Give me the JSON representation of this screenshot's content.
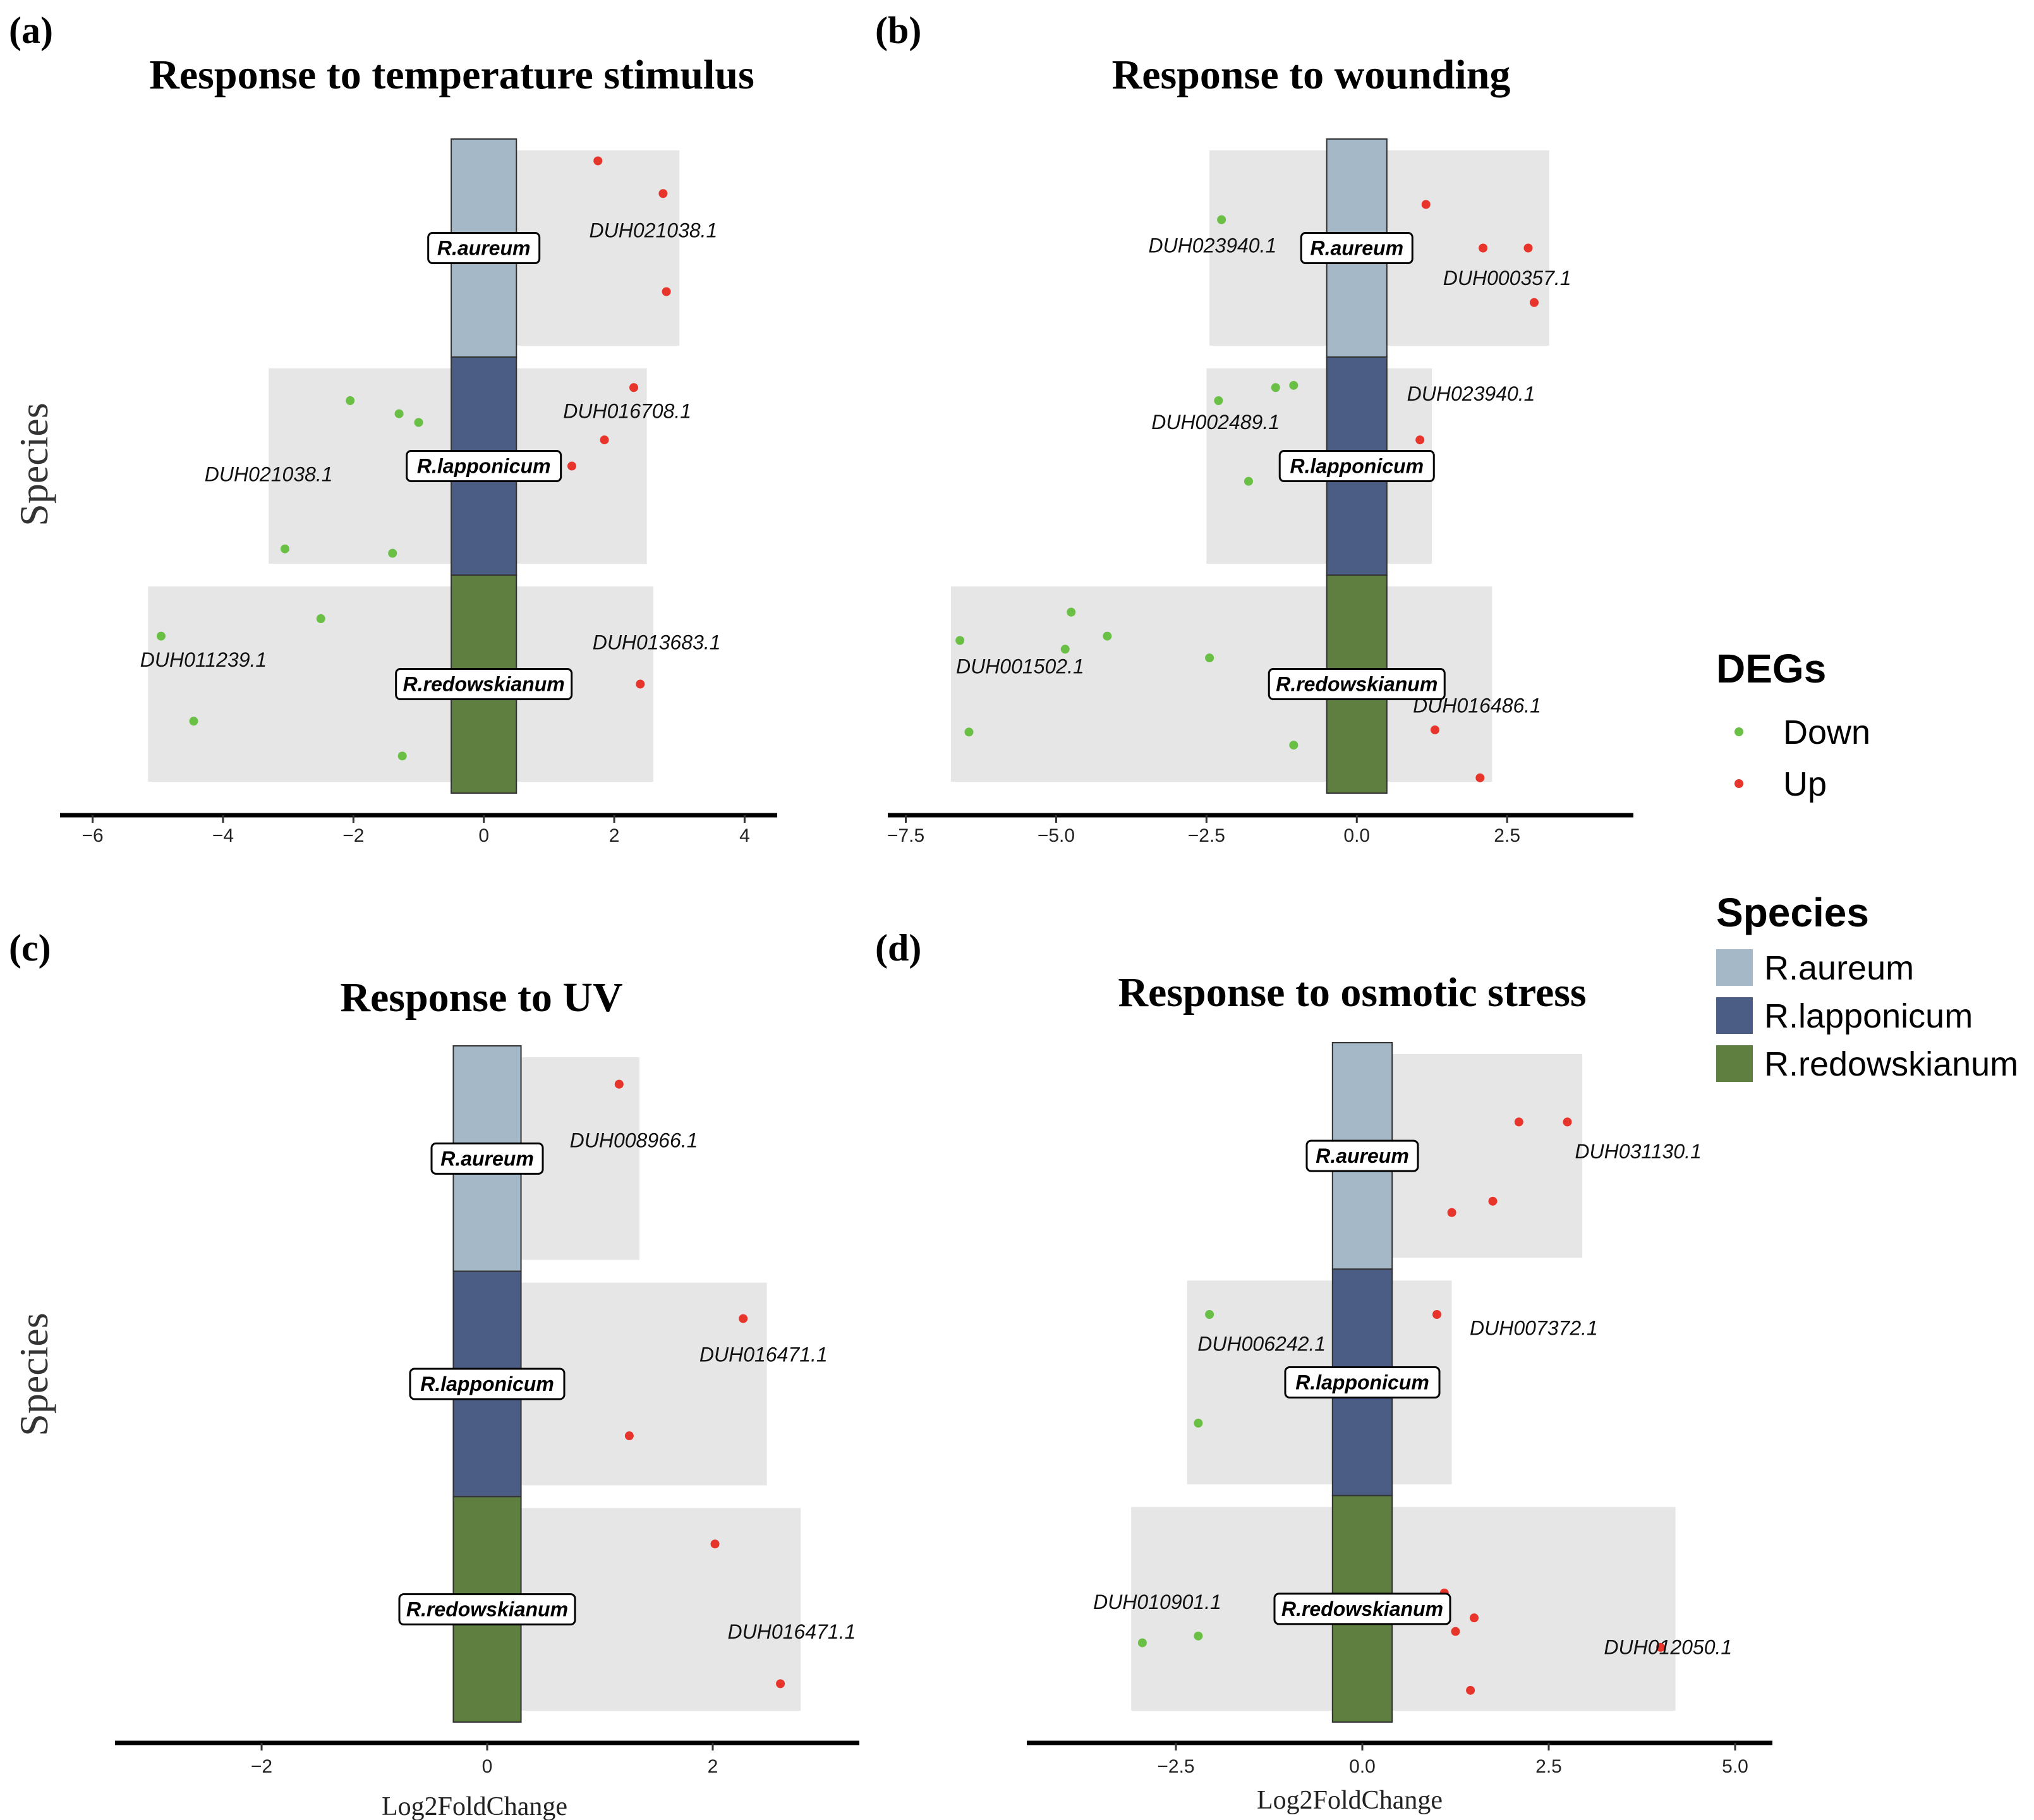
{
  "figure": {
    "y_axis_label": "Species",
    "x_axis_label": "Log2FoldChange",
    "legend": {
      "degs_title": "DEGs",
      "degs": [
        {
          "name": "Down",
          "color": "#6abf45"
        },
        {
          "name": "Up",
          "color": "#e8352b"
        }
      ],
      "species_title": "Species",
      "species": [
        {
          "name": "R.aureum",
          "color": "#a5b8c7"
        },
        {
          "name": "R.lapponicum",
          "color": "#4b5d85"
        },
        {
          "name": "R.redowskianum",
          "color": "#5e7f3f"
        }
      ]
    }
  },
  "chart_data": [
    {
      "type": "scatter",
      "panel": "(a)",
      "title": "Response to temperature stimulus",
      "xlabel": "",
      "ylabel": "Species",
      "xlim": [
        -6.5,
        4.5
      ],
      "xticks": [
        -6,
        -4,
        -2,
        0,
        2,
        4
      ],
      "tick_labels": [
        "−6",
        "−4",
        "−2",
        "0",
        "2",
        "4"
      ],
      "center_half_width": 0.5,
      "species": [
        {
          "name": "R.aureum",
          "range": [
            0.4,
            3.0
          ],
          "points": [
            {
              "x": 1.75,
              "y": 0.9,
              "deg": "Up"
            },
            {
              "x": 2.75,
              "y": 0.75,
              "deg": "Up"
            },
            {
              "x": 2.8,
              "y": 0.3,
              "deg": "Up"
            }
          ],
          "genes": [
            {
              "text": "DUH021038.1",
              "x": 2.6,
              "y": 0.55
            }
          ]
        },
        {
          "name": "R.lapponicum",
          "range": [
            -3.3,
            2.5
          ],
          "points": [
            {
              "x": -2.05,
              "y": 0.8,
              "deg": "Down"
            },
            {
              "x": -1.3,
              "y": 0.74,
              "deg": "Down"
            },
            {
              "x": -1.0,
              "y": 0.7,
              "deg": "Down"
            },
            {
              "x": -3.05,
              "y": 0.12,
              "deg": "Down"
            },
            {
              "x": -1.4,
              "y": 0.1,
              "deg": "Down"
            },
            {
              "x": 2.3,
              "y": 0.86,
              "deg": "Up"
            },
            {
              "x": 1.85,
              "y": 0.62,
              "deg": "Up"
            },
            {
              "x": 1.35,
              "y": 0.5,
              "deg": "Up"
            }
          ],
          "genes": [
            {
              "text": "DUH016708.1",
              "x": 2.2,
              "y": 0.72
            },
            {
              "text": "DUH021038.1",
              "x": -3.3,
              "y": 0.43
            }
          ]
        },
        {
          "name": "R.redowskianum",
          "range": [
            -5.15,
            2.6
          ],
          "points": [
            {
              "x": -2.5,
              "y": 0.8,
              "deg": "Down"
            },
            {
              "x": -4.95,
              "y": 0.72,
              "deg": "Down"
            },
            {
              "x": -4.45,
              "y": 0.33,
              "deg": "Down"
            },
            {
              "x": -1.25,
              "y": 0.17,
              "deg": "Down"
            },
            {
              "x": 2.4,
              "y": 0.5,
              "deg": "Up"
            }
          ],
          "genes": [
            {
              "text": "DUH011239.1",
              "x": -4.3,
              "y": 0.58
            },
            {
              "text": "DUH013683.1",
              "x": 2.65,
              "y": 0.66
            }
          ]
        }
      ]
    },
    {
      "type": "scatter",
      "panel": "(b)",
      "title": "Response to wounding",
      "xlabel": "",
      "ylabel": "",
      "xlim": [
        -7.8,
        4.6
      ],
      "xticks": [
        -7.5,
        -5.0,
        -2.5,
        0.0,
        2.5
      ],
      "tick_labels": [
        "−7.5",
        "−5.0",
        "−2.5",
        "0.0",
        "2.5"
      ],
      "center_half_width": 0.5,
      "species": [
        {
          "name": "R.aureum",
          "range": [
            -2.45,
            3.2
          ],
          "points": [
            {
              "x": -2.25,
              "y": 0.63,
              "deg": "Down"
            },
            {
              "x": 1.15,
              "y": 0.7,
              "deg": "Up"
            },
            {
              "x": 2.1,
              "y": 0.5,
              "deg": "Up"
            },
            {
              "x": 2.85,
              "y": 0.5,
              "deg": "Up"
            },
            {
              "x": 2.95,
              "y": 0.25,
              "deg": "Up"
            }
          ],
          "genes": [
            {
              "text": "DUH023940.1",
              "x": -2.4,
              "y": 0.48
            },
            {
              "text": "DUH000357.1",
              "x": 2.5,
              "y": 0.33
            }
          ]
        },
        {
          "name": "R.lapponicum",
          "range": [
            -2.5,
            1.25
          ],
          "points": [
            {
              "x": -2.3,
              "y": 0.8,
              "deg": "Down"
            },
            {
              "x": -1.35,
              "y": 0.86,
              "deg": "Down"
            },
            {
              "x": -1.05,
              "y": 0.87,
              "deg": "Down"
            },
            {
              "x": -1.8,
              "y": 0.43,
              "deg": "Down"
            },
            {
              "x": 1.05,
              "y": 0.62,
              "deg": "Up"
            }
          ],
          "genes": [
            {
              "text": "DUH002489.1",
              "x": -2.35,
              "y": 0.67
            },
            {
              "text": "DUH023940.1",
              "x": 1.9,
              "y": 0.8
            }
          ]
        },
        {
          "name": "R.redowskianum",
          "range": [
            -6.75,
            2.25
          ],
          "points": [
            {
              "x": -4.75,
              "y": 0.83,
              "deg": "Down"
            },
            {
              "x": -4.15,
              "y": 0.72,
              "deg": "Down"
            },
            {
              "x": -6.6,
              "y": 0.7,
              "deg": "Down"
            },
            {
              "x": -4.85,
              "y": 0.66,
              "deg": "Down"
            },
            {
              "x": -2.45,
              "y": 0.62,
              "deg": "Down"
            },
            {
              "x": -6.45,
              "y": 0.28,
              "deg": "Down"
            },
            {
              "x": -1.05,
              "y": 0.22,
              "deg": "Down"
            },
            {
              "x": 1.3,
              "y": 0.29,
              "deg": "Up"
            },
            {
              "x": 2.05,
              "y": 0.07,
              "deg": "Up"
            }
          ],
          "genes": [
            {
              "text": "DUH001502.1",
              "x": -5.6,
              "y": 0.55
            },
            {
              "text": "DUH016486.1",
              "x": 2.0,
              "y": 0.37
            }
          ]
        }
      ]
    },
    {
      "type": "scatter",
      "panel": "(c)",
      "title": "Response to UV",
      "xlabel": "Log2FoldChange",
      "ylabel": "Species",
      "xlim": [
        -3.3,
        3.3
      ],
      "xticks": [
        -2,
        0,
        2
      ],
      "tick_labels": [
        "−2",
        "0",
        "2"
      ],
      "center_half_width": 0.3,
      "species": [
        {
          "name": "R.aureum",
          "range": [
            0.3,
            1.35
          ],
          "points": [
            {
              "x": 1.17,
              "y": 0.83,
              "deg": "Up"
            }
          ],
          "genes": [
            {
              "text": "DUH008966.1",
              "x": 1.3,
              "y": 0.55
            }
          ]
        },
        {
          "name": "R.lapponicum",
          "range": [
            0.3,
            2.48
          ],
          "points": [
            {
              "x": 2.27,
              "y": 0.79,
              "deg": "Up"
            },
            {
              "x": 1.26,
              "y": 0.27,
              "deg": "Up"
            }
          ],
          "genes": [
            {
              "text": "DUH016471.1",
              "x": 2.45,
              "y": 0.6
            }
          ]
        },
        {
          "name": "R.redowskianum",
          "range": [
            0.3,
            2.78
          ],
          "points": [
            {
              "x": 2.02,
              "y": 0.79,
              "deg": "Up"
            },
            {
              "x": 2.6,
              "y": 0.17,
              "deg": "Up"
            }
          ],
          "genes": [
            {
              "text": "DUH016471.1",
              "x": 2.7,
              "y": 0.37
            }
          ]
        }
      ]
    },
    {
      "type": "scatter",
      "panel": "(d)",
      "title": "Response to osmotic stress",
      "xlabel": "Log2FoldChange",
      "ylabel": "",
      "xlim": [
        -4.5,
        5.5
      ],
      "xticks": [
        -2.5,
        0.0,
        2.5,
        5.0
      ],
      "tick_labels": [
        "−2.5",
        "0.0",
        "2.5",
        "5.0"
      ],
      "center_half_width": 0.4,
      "species": [
        {
          "name": "R.aureum",
          "range": [
            0.4,
            2.95
          ],
          "points": [
            {
              "x": 2.1,
              "y": 0.65,
              "deg": "Up"
            },
            {
              "x": 2.75,
              "y": 0.65,
              "deg": "Up"
            },
            {
              "x": 1.75,
              "y": 0.3,
              "deg": "Up"
            },
            {
              "x": 1.2,
              "y": 0.25,
              "deg": "Up"
            }
          ],
          "genes": [
            {
              "text": "DUH031130.1",
              "x": 3.7,
              "y": 0.49
            }
          ]
        },
        {
          "name": "R.lapponicum",
          "range": [
            -2.35,
            1.2
          ],
          "points": [
            {
              "x": -2.05,
              "y": 0.8,
              "deg": "Down"
            },
            {
              "x": -2.2,
              "y": 0.32,
              "deg": "Down"
            },
            {
              "x": 1.0,
              "y": 0.8,
              "deg": "Up"
            }
          ],
          "genes": [
            {
              "text": "DUH006242.1",
              "x": -1.35,
              "y": 0.64
            },
            {
              "text": "DUH007372.1",
              "x": 2.3,
              "y": 0.71
            }
          ]
        },
        {
          "name": "R.redowskianum",
          "range": [
            -3.1,
            4.2
          ],
          "points": [
            {
              "x": -2.95,
              "y": 0.35,
              "deg": "Down"
            },
            {
              "x": -2.2,
              "y": 0.38,
              "deg": "Down"
            },
            {
              "x": 1.1,
              "y": 0.57,
              "deg": "Up"
            },
            {
              "x": 1.5,
              "y": 0.46,
              "deg": "Up"
            },
            {
              "x": 1.25,
              "y": 0.4,
              "deg": "Up"
            },
            {
              "x": 4.0,
              "y": 0.33,
              "deg": "Up"
            },
            {
              "x": 1.45,
              "y": 0.14,
              "deg": "Up"
            }
          ],
          "genes": [
            {
              "text": "DUH010901.1",
              "x": -2.75,
              "y": 0.5
            },
            {
              "text": "DUH012050.1",
              "x": 4.1,
              "y": 0.3
            }
          ]
        }
      ]
    }
  ]
}
